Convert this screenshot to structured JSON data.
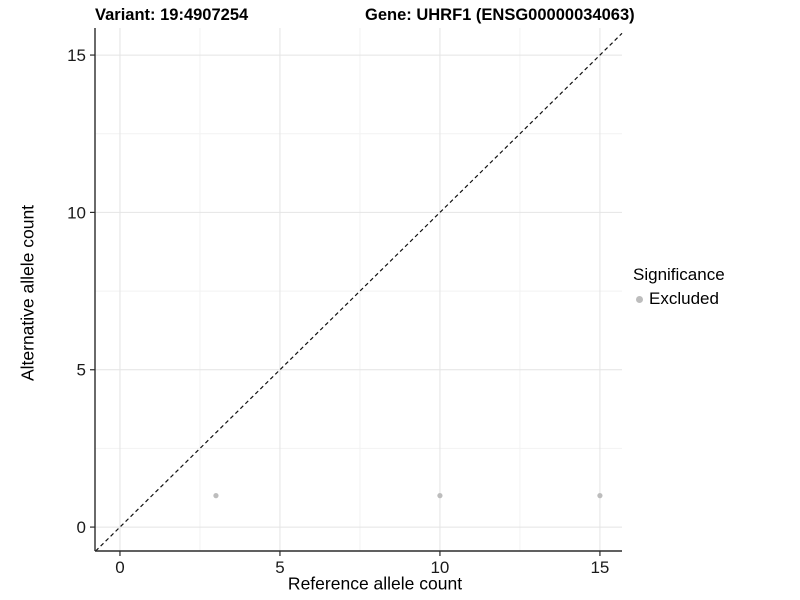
{
  "header": {
    "variant_title": "Variant: 19:4907254",
    "gene_title": "Gene: UHRF1 (ENSG00000034063)"
  },
  "chart_data": {
    "type": "scatter",
    "title_left": "Variant: 19:4907254",
    "title_right": "Gene: UHRF1 (ENSG00000034063)",
    "xlabel": "Reference allele count",
    "ylabel": "Alternative allele count",
    "xlim": [
      -0.78,
      15.69
    ],
    "ylim": [
      -0.76,
      15.86
    ],
    "xticks": [
      0,
      5,
      10,
      15
    ],
    "yticks": [
      0,
      5,
      10,
      15
    ],
    "x_minor": [
      2.5,
      7.5,
      12.5
    ],
    "y_minor": [
      2.5,
      7.5,
      12.5
    ],
    "grid": true,
    "legend_position": "right",
    "legend": {
      "title": "Significance",
      "items": [
        {
          "label": "Excluded",
          "color": "#bdbdbd"
        }
      ]
    },
    "series": [
      {
        "name": "Excluded",
        "color": "#bdbdbd",
        "point_radius": 2.6,
        "points": [
          [
            3,
            1
          ],
          [
            10,
            1
          ],
          [
            15,
            1
          ]
        ]
      }
    ],
    "reference_line": {
      "name": "identity-line",
      "style": "dashed",
      "color": "#111111",
      "from": [
        -0.76,
        -0.76
      ],
      "to": [
        15.69,
        15.69
      ]
    }
  },
  "colors": {
    "background": "#ffffff",
    "grid_major": "#e4e4e4",
    "grid_minor": "#f2f2f2",
    "axis": "#2b2b2b",
    "tick_text": "#1a1a1a"
  }
}
